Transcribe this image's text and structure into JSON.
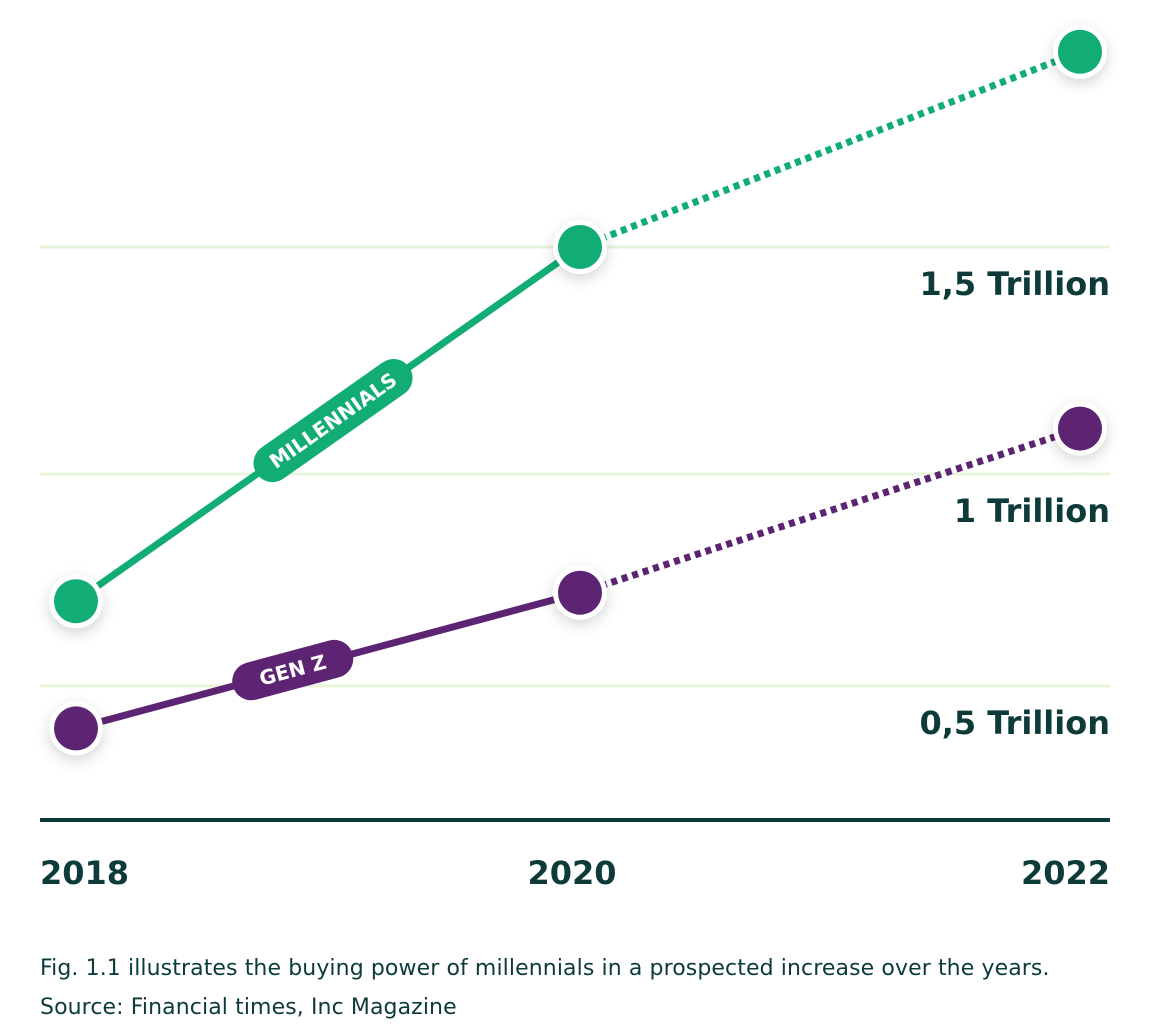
{
  "colors": {
    "millennials": "#12ad74",
    "genz": "#5c2472",
    "axis": "#0d3b3a",
    "grid": "#e8f5dc"
  },
  "chart_data": {
    "type": "line",
    "title": "",
    "xlabel": "",
    "ylabel": "",
    "x": [
      2018,
      2020,
      2022
    ],
    "x_tick_labels": [
      "2018",
      "2020",
      "2022"
    ],
    "ylim": [
      0.2,
      2.0
    ],
    "y_ticks": [
      0.5,
      1.0,
      1.5
    ],
    "y_tick_labels": [
      "0,5 Trillion",
      "1 Trillion",
      "1,5 Trillion"
    ],
    "grid": true,
    "projection_note": "segment from 2020 to 2022 drawn dotted (prospected)",
    "series": [
      {
        "name": "MILLENNIALS",
        "values": [
          0.7,
          1.5,
          1.93
        ],
        "color": "#12ad74"
      },
      {
        "name": "GEN Z",
        "values": [
          0.4,
          0.72,
          1.1
        ],
        "color": "#5c2472"
      }
    ]
  },
  "caption": {
    "line1": "Fig. 1.1 illustrates the buying power of millennials in a prospected increase over the years.",
    "line2": "Source: Financial times, Inc Magazine"
  }
}
